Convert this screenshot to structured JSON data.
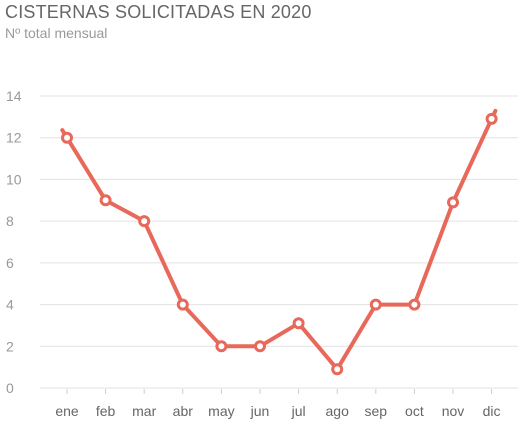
{
  "chart_data": {
    "type": "line",
    "title": "CISTERNAS SOLICITADAS EN 2020",
    "subtitle": "Nº total mensual",
    "xlabel": "",
    "ylabel": "",
    "categories": [
      "ene",
      "feb",
      "mar",
      "abr",
      "may",
      "jun",
      "jul",
      "ago",
      "sep",
      "oct",
      "nov",
      "dic"
    ],
    "series": [
      {
        "values": [
          12,
          9,
          8,
          4,
          2,
          2,
          3.1,
          0.9,
          4,
          4,
          8.9,
          12.9
        ],
        "color": "#e8685a"
      }
    ],
    "yticks": [
      0,
      2,
      4,
      6,
      8,
      10,
      12,
      14
    ],
    "ylim": [
      0,
      14
    ],
    "grid": true,
    "legend": "none"
  }
}
